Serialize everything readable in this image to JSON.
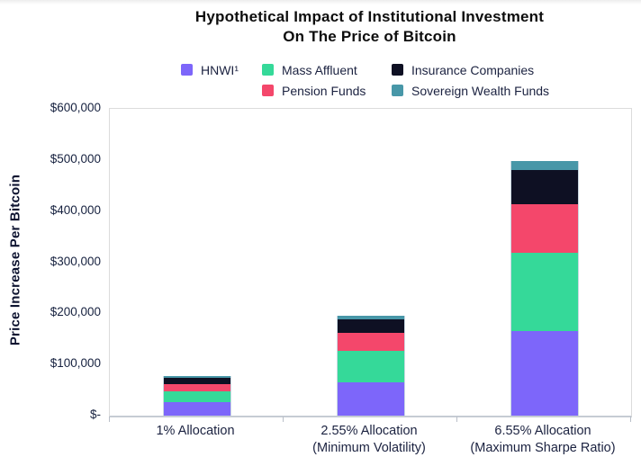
{
  "title": {
    "line1": "Hypothetical Impact of Institutional Investment",
    "line2": "On The Price of Bitcoin"
  },
  "chart_data": {
    "type": "bar",
    "stacked": true,
    "title": "Hypothetical Impact of Institutional Investment On The Price of Bitcoin",
    "ylabel": "Price Increase Per Bitcoin",
    "xlabel": "",
    "ylim": [
      0,
      600000
    ],
    "y_tick_labels": [
      "$600,000",
      "$500,000",
      "$400,000",
      "$300,000",
      "$200,000",
      "$100,000",
      "$-"
    ],
    "grid": false,
    "legend_position": "top",
    "categories": [
      "1% Allocation",
      "2.55% Allocation",
      "6.55% Allocation"
    ],
    "category_sublabels": [
      "",
      "(Minimum Volatility)",
      "(Maximum Sharpe Ratio)"
    ],
    "series": [
      {
        "name": "HNWI¹",
        "color": "#7D66FA",
        "values": [
          26000,
          65000,
          166000
        ]
      },
      {
        "name": "Mass Affluent",
        "color": "#35D999",
        "values": [
          21000,
          61000,
          153000
        ]
      },
      {
        "name": "Pension Funds",
        "color": "#F4476B",
        "values": [
          14000,
          36000,
          95000
        ]
      },
      {
        "name": "Insurance Companies",
        "color": "#0E1023",
        "values": [
          13000,
          27000,
          67000
        ]
      },
      {
        "name": "Sovereign Wealth Funds",
        "color": "#4897A8",
        "values": [
          3000,
          7000,
          17000
        ]
      }
    ],
    "totals": [
      77000,
      196000,
      498000
    ]
  }
}
